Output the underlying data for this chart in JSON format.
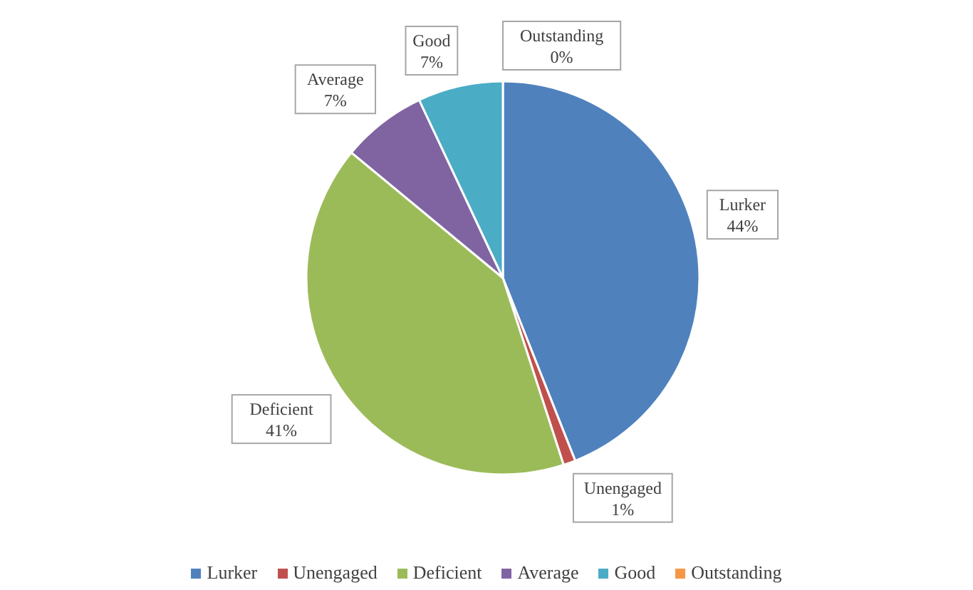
{
  "chart_data": {
    "type": "pie",
    "categories": [
      "Lurker",
      "Unengaged",
      "Deficient",
      "Average",
      "Good",
      "Outstanding"
    ],
    "values": [
      44,
      1,
      41,
      7,
      7,
      0
    ],
    "colors": [
      "#4f81bd",
      "#c0504d",
      "#9bbb59",
      "#8064a2",
      "#4bacc6",
      "#f79646"
    ],
    "value_labels": [
      "44%",
      "1%",
      "41%",
      "7%",
      "7%",
      "0%"
    ],
    "legend": "bottom"
  }
}
